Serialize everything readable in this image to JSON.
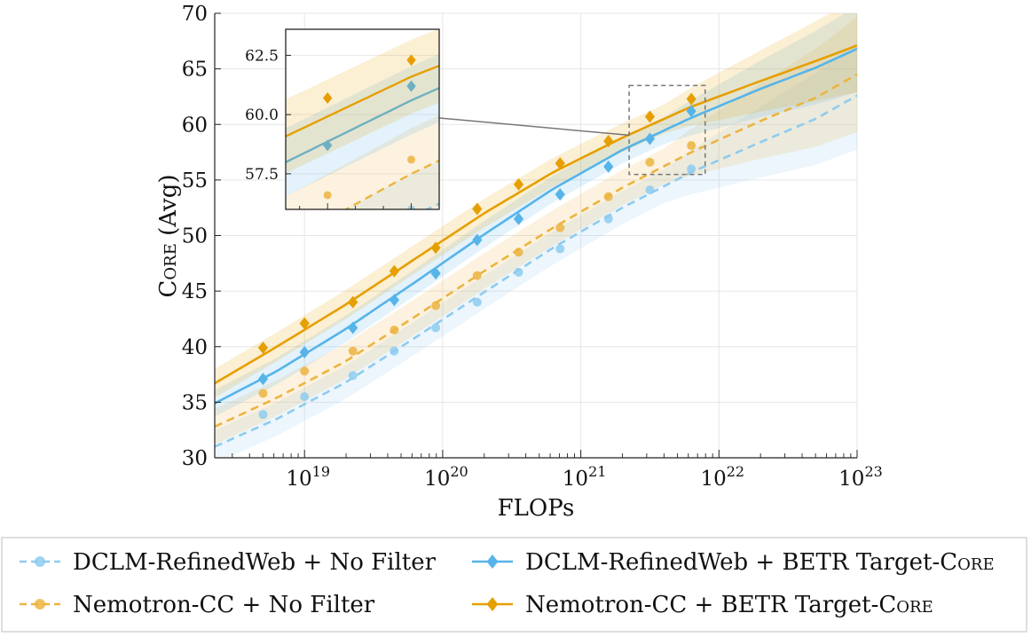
{
  "chart_data": {
    "type": "line",
    "title": "",
    "xlabel": "FLOPs",
    "ylabel_main": "Core",
    "ylabel_suffix": " (Avg)",
    "xscale": "log",
    "xlim_log10": [
      18.35,
      23.0
    ],
    "ylim": [
      30,
      70
    ],
    "grid": true,
    "x_tick_labels": [
      {
        "base": "10",
        "exp": "19",
        "log10": 19
      },
      {
        "base": "10",
        "exp": "20",
        "log10": 20
      },
      {
        "base": "10",
        "exp": "21",
        "log10": 21
      },
      {
        "base": "10",
        "exp": "22",
        "log10": 22
      },
      {
        "base": "10",
        "exp": "23",
        "log10": 23
      }
    ],
    "y_ticks": [
      30,
      35,
      40,
      45,
      50,
      55,
      60,
      65,
      70
    ],
    "legend_position": "bottom",
    "series": [
      {
        "id": "dclm-nofilter",
        "name": "DCLM-RefinedWeb + No Filter",
        "name_main": "DCLM-RefinedWeb + No Filter",
        "name_sc": "",
        "color": "#8ecbf0",
        "dash": "dashed",
        "marker": "circle",
        "points": [
          [
            18.7,
            33.9
          ],
          [
            19.0,
            35.5
          ],
          [
            19.35,
            37.4
          ],
          [
            19.65,
            39.6
          ],
          [
            19.95,
            41.7
          ],
          [
            20.25,
            44.0
          ],
          [
            20.55,
            46.7
          ],
          [
            20.85,
            48.8
          ],
          [
            21.2,
            51.5
          ],
          [
            21.5,
            54.1
          ],
          [
            21.8,
            56.0
          ]
        ],
        "fit": [
          [
            18.35,
            31.0
          ],
          [
            18.8,
            33.5
          ],
          [
            19.3,
            36.8
          ],
          [
            19.8,
            40.8
          ],
          [
            20.3,
            44.9
          ],
          [
            20.8,
            48.9
          ],
          [
            21.3,
            52.5
          ],
          [
            21.8,
            55.7
          ],
          [
            22.3,
            58.4
          ],
          [
            22.7,
            60.5
          ],
          [
            23.0,
            62.6
          ]
        ],
        "band": 1.5
      },
      {
        "id": "nemotron-nofilter",
        "name": "Nemotron-CC + No Filter",
        "name_main": "Nemotron-CC + No Filter",
        "name_sc": "",
        "color": "#ecb440",
        "dash": "dashed",
        "marker": "circle",
        "points": [
          [
            18.7,
            35.8
          ],
          [
            19.0,
            37.8
          ],
          [
            19.35,
            39.6
          ],
          [
            19.65,
            41.5
          ],
          [
            19.95,
            43.7
          ],
          [
            20.25,
            46.4
          ],
          [
            20.55,
            48.5
          ],
          [
            20.85,
            50.7
          ],
          [
            21.2,
            53.5
          ],
          [
            21.5,
            56.6
          ],
          [
            21.8,
            58.1
          ]
        ],
        "fit": [
          [
            18.35,
            32.8
          ],
          [
            18.8,
            35.4
          ],
          [
            19.3,
            38.7
          ],
          [
            19.8,
            42.7
          ],
          [
            20.3,
            46.8
          ],
          [
            20.8,
            50.7
          ],
          [
            21.3,
            54.3
          ],
          [
            21.8,
            57.5
          ],
          [
            22.3,
            60.3
          ],
          [
            22.7,
            62.4
          ],
          [
            23.0,
            64.5
          ]
        ],
        "band": 1.6
      },
      {
        "id": "dclm-betr",
        "name": "DCLM-RefinedWeb + BETR Target-Core",
        "name_main": "DCLM-RefinedWeb + BETR Target-",
        "name_sc": "Core",
        "color": "#56b4e9",
        "dash": "solid",
        "marker": "diamond",
        "points": [
          [
            18.7,
            37.1
          ],
          [
            19.0,
            39.5
          ],
          [
            19.35,
            41.7
          ],
          [
            19.65,
            44.2
          ],
          [
            19.95,
            46.6
          ],
          [
            20.25,
            49.6
          ],
          [
            20.55,
            51.5
          ],
          [
            20.85,
            53.7
          ],
          [
            21.2,
            56.2
          ],
          [
            21.5,
            58.7
          ],
          [
            21.8,
            61.2
          ]
        ],
        "fit": [
          [
            18.35,
            34.9
          ],
          [
            18.8,
            37.8
          ],
          [
            19.3,
            41.6
          ],
          [
            19.8,
            45.8
          ],
          [
            20.3,
            50.1
          ],
          [
            20.8,
            54.2
          ],
          [
            21.3,
            57.7
          ],
          [
            21.8,
            60.6
          ],
          [
            22.3,
            63.2
          ],
          [
            22.7,
            65.1
          ],
          [
            23.0,
            66.8
          ]
        ],
        "band": 1.2
      },
      {
        "id": "nemotron-betr",
        "name": "Nemotron-CC + BETR Target-Core",
        "name_main": "Nemotron-CC + BETR Target-",
        "name_sc": "Core",
        "color": "#e69f00",
        "dash": "solid",
        "marker": "diamond",
        "points": [
          [
            18.7,
            39.9
          ],
          [
            19.0,
            42.1
          ],
          [
            19.35,
            44.0
          ],
          [
            19.65,
            46.8
          ],
          [
            19.95,
            48.9
          ],
          [
            20.25,
            52.4
          ],
          [
            20.55,
            54.6
          ],
          [
            20.85,
            56.5
          ],
          [
            21.2,
            58.5
          ],
          [
            21.5,
            60.7
          ],
          [
            21.8,
            62.3
          ]
        ],
        "fit": [
          [
            18.35,
            36.7
          ],
          [
            18.8,
            40.0
          ],
          [
            19.3,
            43.8
          ],
          [
            19.8,
            47.9
          ],
          [
            20.3,
            52.0
          ],
          [
            20.8,
            55.7
          ],
          [
            21.3,
            58.8
          ],
          [
            21.8,
            61.6
          ],
          [
            22.3,
            63.9
          ],
          [
            22.7,
            65.7
          ],
          [
            23.0,
            67.1
          ]
        ],
        "band": 1.3
      }
    ],
    "inset": {
      "xlim_log10": [
        21.35,
        21.9
      ],
      "ylim": [
        56.0,
        63.6
      ],
      "y_ticks": [
        57.5,
        60.0,
        62.5
      ],
      "y_tick_labels": [
        "57.5",
        "60.0",
        "62.5"
      ],
      "zoom_box": {
        "x_log10": [
          21.35,
          21.9
        ],
        "y": [
          55.5,
          63.5
        ]
      }
    }
  }
}
